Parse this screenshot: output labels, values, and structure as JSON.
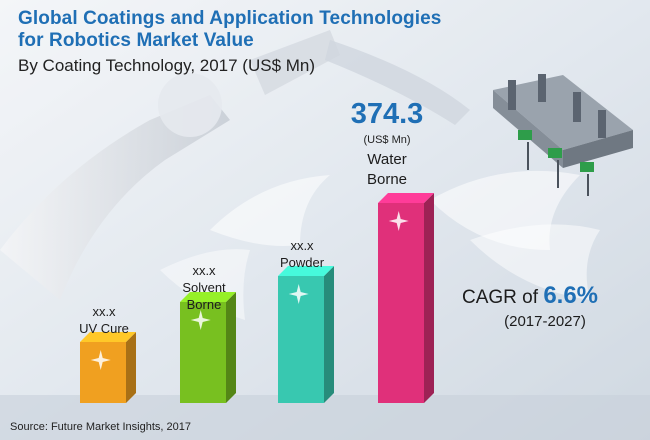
{
  "header": {
    "title_line1": "Global Coatings and Application Technologies",
    "title_line2": "for Robotics Market Value",
    "subtitle": "By Coating Technology, 2017 (US$ Mn)"
  },
  "chart_data": {
    "type": "bar",
    "title": "Global Coatings and Application Technologies for Robotics Market Value",
    "subtitle": "By Coating Technology, 2017 (US$ Mn)",
    "categories": [
      "UV Cure",
      "Solvent Borne",
      "Powder",
      "Water Borne"
    ],
    "value_labels": [
      "xx.x",
      "xx.x",
      "xx.x",
      "374.3"
    ],
    "values": [
      null,
      null,
      null,
      374.3
    ],
    "unit": "(US$ Mn)",
    "colors": [
      "#f0a020",
      "#78c020",
      "#38c8b0",
      "#e0307a"
    ],
    "grid": false,
    "legend": "none"
  },
  "labels": {
    "bar1_value": "xx.x",
    "bar1_name": "UV Cure",
    "bar2_value": "xx.x",
    "bar2_name_line1": "Solvent",
    "bar2_name_line2": "Borne",
    "bar3_value": "xx.x",
    "bar3_name": "Powder",
    "bar4_value": "374.3",
    "bar4_unit": "(US$ Mn)",
    "bar4_name_line1": "Water",
    "bar4_name_line2": "Borne"
  },
  "cagr": {
    "prefix": "CAGR of ",
    "value": "6.6%",
    "period": "(2017-2027)"
  },
  "footer": {
    "source": "Source: Future Market Insights, 2017"
  }
}
